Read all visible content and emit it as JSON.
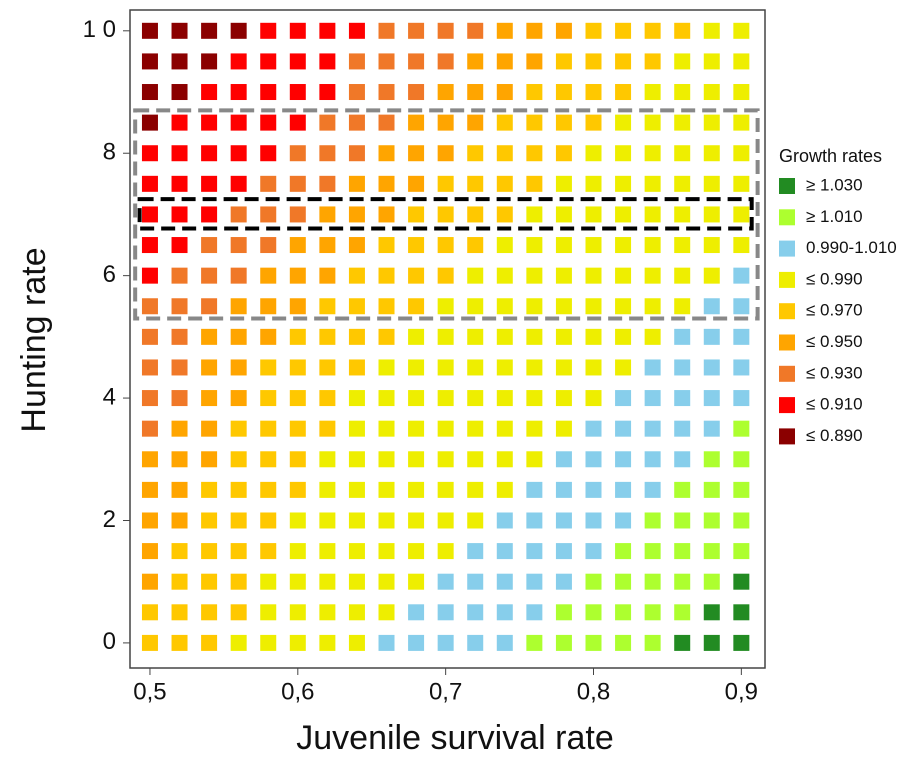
{
  "chart_data": {
    "type": "heatmap",
    "xlabel": "Juvenile survival rate",
    "ylabel": "Hunting rate",
    "x": [
      0.5,
      0.52,
      0.54,
      0.56,
      0.58,
      0.6,
      0.62,
      0.64,
      0.66,
      0.68,
      0.7,
      0.72,
      0.74,
      0.76,
      0.78,
      0.8,
      0.82,
      0.84,
      0.86,
      0.88,
      0.9
    ],
    "y": [
      0,
      0.5,
      1,
      1.5,
      2,
      2.5,
      3,
      3.5,
      4,
      4.5,
      5,
      5.5,
      6,
      6.5,
      7,
      7.5,
      8,
      8.5,
      9,
      9.5,
      10
    ],
    "xlim": [
      0.4865,
      0.916
    ],
    "ylim": [
      -0.41,
      10.34
    ],
    "xticks": [
      {
        "value": 0.5,
        "label": "0,5"
      },
      {
        "value": 0.6,
        "label": "0,6"
      },
      {
        "value": 0.7,
        "label": "0,7"
      },
      {
        "value": 0.8,
        "label": "0,8"
      },
      {
        "value": 0.9,
        "label": "0,9"
      }
    ],
    "yticks": [
      0,
      2,
      4,
      6,
      8,
      {
        "value": 10,
        "label": "1 0"
      }
    ],
    "legend_title": "Growth rates",
    "legend": [
      {
        "name": "≥ 1.030",
        "color": "#228b22"
      },
      {
        "name": "≥ 1.010",
        "color": "#adff2f"
      },
      {
        "name": "0.990-1.010",
        "color": "#87ceeb"
      },
      {
        "name": "≤ 0.990",
        "color": "#eeee00"
      },
      {
        "name": "≤ 0.970",
        "color": "#ffc800"
      },
      {
        "name": "≤ 0.950",
        "color": "#ffa500"
      },
      {
        "name": "≤ 0.930",
        "color": "#f07828"
      },
      {
        "name": "≤ 0.910",
        "color": "#ff0000"
      },
      {
        "name": "≤ 0.890",
        "color": "#8b0000"
      }
    ],
    "z": [
      [
        4,
        4,
        4,
        3,
        3,
        3,
        3,
        3,
        2,
        2,
        2,
        2,
        2,
        1,
        1,
        1,
        1,
        1,
        0,
        0,
        0
      ],
      [
        4,
        4,
        4,
        4,
        3,
        3,
        3,
        3,
        3,
        2,
        2,
        2,
        2,
        2,
        1,
        1,
        1,
        1,
        1,
        0,
        0
      ],
      [
        5,
        4,
        4,
        4,
        3,
        3,
        3,
        3,
        3,
        3,
        2,
        2,
        2,
        2,
        2,
        1,
        1,
        1,
        1,
        1,
        0
      ],
      [
        5,
        4,
        4,
        4,
        4,
        3,
        3,
        3,
        3,
        3,
        3,
        2,
        2,
        2,
        2,
        2,
        1,
        1,
        1,
        1,
        1
      ],
      [
        5,
        5,
        4,
        4,
        4,
        3,
        3,
        3,
        3,
        3,
        3,
        3,
        2,
        2,
        2,
        2,
        2,
        1,
        1,
        1,
        1
      ],
      [
        5,
        5,
        4,
        4,
        4,
        4,
        3,
        3,
        3,
        3,
        3,
        3,
        3,
        2,
        2,
        2,
        2,
        2,
        1,
        1,
        1
      ],
      [
        5,
        5,
        5,
        4,
        4,
        4,
        3,
        3,
        3,
        3,
        3,
        3,
        3,
        3,
        2,
        2,
        2,
        2,
        2,
        1,
        1
      ],
      [
        6,
        5,
        5,
        4,
        4,
        4,
        4,
        3,
        3,
        3,
        3,
        3,
        3,
        3,
        3,
        2,
        2,
        2,
        2,
        2,
        1
      ],
      [
        6,
        6,
        5,
        5,
        4,
        4,
        4,
        3,
        3,
        3,
        3,
        3,
        3,
        3,
        3,
        3,
        2,
        2,
        2,
        2,
        2
      ],
      [
        6,
        6,
        5,
        5,
        4,
        4,
        4,
        4,
        3,
        3,
        3,
        3,
        3,
        3,
        3,
        3,
        3,
        2,
        2,
        2,
        2
      ],
      [
        6,
        6,
        5,
        5,
        5,
        4,
        4,
        4,
        4,
        3,
        3,
        3,
        3,
        3,
        3,
        3,
        3,
        3,
        2,
        2,
        2
      ],
      [
        6,
        6,
        6,
        5,
        5,
        5,
        4,
        4,
        4,
        4,
        3,
        3,
        3,
        3,
        3,
        3,
        3,
        3,
        3,
        2,
        2
      ],
      [
        7,
        6,
        6,
        6,
        5,
        5,
        5,
        4,
        4,
        4,
        4,
        3,
        3,
        3,
        3,
        3,
        3,
        3,
        3,
        3,
        2
      ],
      [
        7,
        7,
        6,
        6,
        6,
        5,
        5,
        5,
        4,
        4,
        4,
        4,
        3,
        3,
        3,
        3,
        3,
        3,
        3,
        3,
        3
      ],
      [
        7,
        7,
        7,
        6,
        6,
        6,
        5,
        5,
        5,
        4,
        4,
        4,
        4,
        3,
        3,
        3,
        3,
        3,
        3,
        3,
        3
      ],
      [
        7,
        7,
        7,
        7,
        6,
        6,
        6,
        5,
        5,
        5,
        4,
        4,
        4,
        4,
        3,
        3,
        3,
        3,
        3,
        3,
        3
      ],
      [
        7,
        7,
        7,
        7,
        7,
        6,
        6,
        6,
        5,
        5,
        5,
        4,
        4,
        4,
        4,
        3,
        3,
        3,
        3,
        3,
        3
      ],
      [
        8,
        7,
        7,
        7,
        7,
        7,
        6,
        6,
        6,
        5,
        5,
        5,
        4,
        4,
        4,
        4,
        3,
        3,
        3,
        3,
        3
      ],
      [
        8,
        8,
        7,
        7,
        7,
        7,
        7,
        6,
        6,
        6,
        5,
        5,
        5,
        4,
        4,
        4,
        4,
        3,
        3,
        3,
        3
      ],
      [
        8,
        8,
        8,
        7,
        7,
        7,
        7,
        6,
        6,
        6,
        6,
        5,
        5,
        5,
        4,
        4,
        4,
        4,
        3,
        3,
        3
      ],
      [
        8,
        8,
        8,
        8,
        7,
        7,
        7,
        7,
        6,
        6,
        6,
        6,
        5,
        5,
        5,
        4,
        4,
        4,
        4,
        3,
        3
      ]
    ],
    "highlights": [
      {
        "xrange": [
          0.49,
          0.911
        ],
        "yrange": [
          5.3,
          8.7
        ],
        "color": "#888888"
      },
      {
        "xrange": [
          0.493,
          0.907
        ],
        "yrange": [
          6.77,
          7.25
        ],
        "color": "#000000"
      }
    ]
  }
}
